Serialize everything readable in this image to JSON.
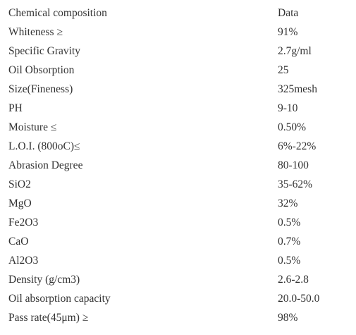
{
  "table": {
    "header": {
      "name": "Chemical composition",
      "value": "Data"
    },
    "rows": [
      {
        "name": "Whiteness ≥",
        "value": "91%"
      },
      {
        "name": "Specific Gravity",
        "value": "2.7g/ml"
      },
      {
        "name": "Oil Obsorption",
        "value": "25"
      },
      {
        "name": "Size(Fineness)",
        "value": "325mesh"
      },
      {
        "name": "PH",
        "value": "9-10"
      },
      {
        "name": "Moisture ≤",
        "value": "0.50%"
      },
      {
        "name": "L.O.I. (800oC)≤",
        "value": "6%-22%"
      },
      {
        "name": "Abrasion Degree",
        "value": "80-100"
      },
      {
        "name": "SiO2",
        "value": "35-62%"
      },
      {
        "name": "MgO",
        "value": "32%"
      },
      {
        "name": "Fe2O3",
        "value": "0.5%"
      },
      {
        "name": "CaO",
        "value": "0.7%"
      },
      {
        "name": "Al2O3",
        "value": "0.5%"
      },
      {
        "name": "Density (g/cm3)",
        "value": "2.6-2.8"
      },
      {
        "name": "Oil absorption capacity",
        "value": "20.0-50.0"
      },
      {
        "name": "Pass rate(45μm) ≥",
        "value": "98%"
      }
    ]
  }
}
